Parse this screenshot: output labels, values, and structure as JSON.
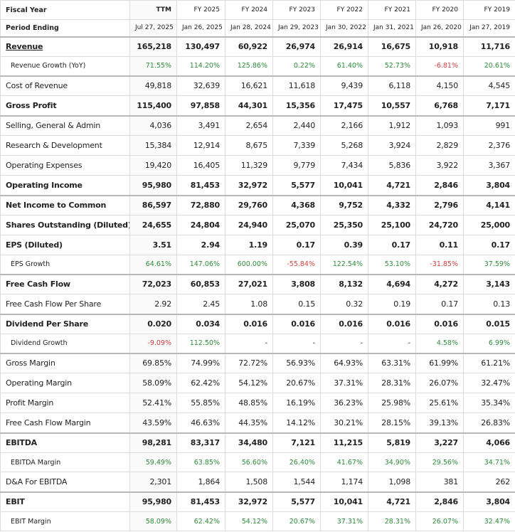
{
  "header": {
    "label": "Fiscal Year",
    "cols": [
      "TTM",
      "FY 2025",
      "FY 2024",
      "FY 2023",
      "FY 2022",
      "FY 2021",
      "FY 2020",
      "FY 2019"
    ]
  },
  "period": {
    "label": "Period Ending",
    "cols": [
      "Jul 27, 2025",
      "Jan 26, 2025",
      "Jan 28, 2024",
      "Jan 29, 2023",
      "Jan 30, 2022",
      "Jan 31, 2021",
      "Jan 26, 2020",
      "Jan 27, 2019"
    ]
  },
  "rows": [
    {
      "id": "revenue",
      "label": "Revenue",
      "style": "bold",
      "link": true,
      "thick": true,
      "values": [
        "165,218",
        "130,497",
        "60,922",
        "26,974",
        "26,914",
        "16,675",
        "10,918",
        "11,716"
      ]
    },
    {
      "id": "revenue-growth",
      "label": "Revenue Growth (YoY)",
      "style": "sub",
      "values": [
        "71.55%",
        "114.20%",
        "125.86%",
        "0.22%",
        "61.40%",
        "52.73%",
        "-6.81%",
        "20.61%"
      ]
    },
    {
      "id": "cost-of-revenue",
      "label": "Cost of Revenue",
      "style": "normal",
      "thick": true,
      "values": [
        "49,818",
        "32,639",
        "16,621",
        "11,618",
        "9,439",
        "6,118",
        "4,150",
        "4,545"
      ]
    },
    {
      "id": "gross-profit",
      "label": "Gross Profit",
      "style": "bold",
      "values": [
        "115,400",
        "97,858",
        "44,301",
        "15,356",
        "17,475",
        "10,557",
        "6,768",
        "7,171"
      ]
    },
    {
      "id": "sga",
      "label": "Selling, General & Admin",
      "style": "normal",
      "thick": true,
      "values": [
        "4,036",
        "3,491",
        "2,654",
        "2,440",
        "2,166",
        "1,912",
        "1,093",
        "991"
      ]
    },
    {
      "id": "rnd",
      "label": "Research & Development",
      "style": "normal",
      "values": [
        "15,384",
        "12,914",
        "8,675",
        "7,339",
        "5,268",
        "3,924",
        "2,829",
        "2,376"
      ]
    },
    {
      "id": "operating-expenses",
      "label": "Operating Expenses",
      "style": "normal",
      "values": [
        "19,420",
        "16,405",
        "11,329",
        "9,779",
        "7,434",
        "5,836",
        "3,922",
        "3,367"
      ]
    },
    {
      "id": "operating-income",
      "label": "Operating Income",
      "style": "bold",
      "values": [
        "95,980",
        "81,453",
        "32,972",
        "5,577",
        "10,041",
        "4,721",
        "2,846",
        "3,804"
      ]
    },
    {
      "id": "net-income",
      "label": "Net Income to Common",
      "style": "bold",
      "thick": true,
      "values": [
        "86,597",
        "72,880",
        "29,760",
        "4,368",
        "9,752",
        "4,332",
        "2,796",
        "4,141"
      ]
    },
    {
      "id": "shares-outstanding",
      "label": "Shares Outstanding (Diluted)",
      "style": "bold",
      "values": [
        "24,655",
        "24,804",
        "24,940",
        "25,070",
        "25,350",
        "25,100",
        "24,720",
        "25,000"
      ]
    },
    {
      "id": "eps",
      "label": "EPS (Diluted)",
      "style": "bold",
      "values": [
        "3.51",
        "2.94",
        "1.19",
        "0.17",
        "0.39",
        "0.17",
        "0.11",
        "0.17"
      ]
    },
    {
      "id": "eps-growth",
      "label": "EPS Growth",
      "style": "sub",
      "values": [
        "64.61%",
        "147.06%",
        "600.00%",
        "-55.84%",
        "122.54%",
        "53.10%",
        "-31.85%",
        "37.59%"
      ]
    },
    {
      "id": "free-cash-flow",
      "label": "Free Cash Flow",
      "style": "bold",
      "thick": true,
      "values": [
        "72,023",
        "60,853",
        "27,021",
        "3,808",
        "8,132",
        "4,694",
        "4,272",
        "3,143"
      ]
    },
    {
      "id": "fcf-per-share",
      "label": "Free Cash Flow Per Share",
      "style": "normal",
      "values": [
        "2.92",
        "2.45",
        "1.08",
        "0.15",
        "0.32",
        "0.19",
        "0.17",
        "0.13"
      ]
    },
    {
      "id": "dividend-per-share",
      "label": "Dividend Per Share",
      "style": "bold",
      "thick": true,
      "values": [
        "0.020",
        "0.034",
        "0.016",
        "0.016",
        "0.016",
        "0.016",
        "0.016",
        "0.015"
      ]
    },
    {
      "id": "dividend-growth",
      "label": "Dividend Growth",
      "style": "sub",
      "values": [
        "-9.09%",
        "112.50%",
        "-",
        "-",
        "-",
        "-",
        "4.58%",
        "6.99%"
      ]
    },
    {
      "id": "gross-margin",
      "label": "Gross Margin",
      "style": "normal",
      "thick": true,
      "values": [
        "69.85%",
        "74.99%",
        "72.72%",
        "56.93%",
        "64.93%",
        "63.31%",
        "61.99%",
        "61.21%"
      ]
    },
    {
      "id": "operating-margin",
      "label": "Operating Margin",
      "style": "normal",
      "values": [
        "58.09%",
        "62.42%",
        "54.12%",
        "20.67%",
        "37.31%",
        "28.31%",
        "26.07%",
        "32.47%"
      ]
    },
    {
      "id": "profit-margin",
      "label": "Profit Margin",
      "style": "normal",
      "values": [
        "52.41%",
        "55.85%",
        "48.85%",
        "16.19%",
        "36.23%",
        "25.98%",
        "25.61%",
        "35.34%"
      ]
    },
    {
      "id": "fcf-margin",
      "label": "Free Cash Flow Margin",
      "style": "normal",
      "values": [
        "43.59%",
        "46.63%",
        "44.35%",
        "14.12%",
        "30.21%",
        "28.15%",
        "39.13%",
        "26.83%"
      ]
    },
    {
      "id": "ebitda",
      "label": "EBITDA",
      "style": "bold",
      "thick": true,
      "values": [
        "98,281",
        "83,317",
        "34,480",
        "7,121",
        "11,215",
        "5,819",
        "3,227",
        "4,066"
      ]
    },
    {
      "id": "ebitda-margin",
      "label": "EBITDA Margin",
      "style": "sub",
      "values": [
        "59.49%",
        "63.85%",
        "56.60%",
        "26.40%",
        "41.67%",
        "34.90%",
        "29.56%",
        "34.71%"
      ]
    },
    {
      "id": "da-for-ebitda",
      "label": "D&A For EBITDA",
      "style": "normal",
      "values": [
        "2,301",
        "1,864",
        "1,508",
        "1,544",
        "1,174",
        "1,098",
        "381",
        "262"
      ]
    },
    {
      "id": "ebit",
      "label": "EBIT",
      "style": "bold",
      "thick": true,
      "values": [
        "95,980",
        "81,453",
        "32,972",
        "5,577",
        "10,041",
        "4,721",
        "2,846",
        "3,804"
      ]
    },
    {
      "id": "ebit-margin",
      "label": "EBIT Margin",
      "style": "sub",
      "values": [
        "58.09%",
        "62.42%",
        "54.12%",
        "20.67%",
        "37.31%",
        "28.31%",
        "26.07%",
        "32.47%"
      ]
    }
  ],
  "colors": {
    "positive": "#2e8b3a",
    "negative": "#d23f3f",
    "border": "#dcdcdc",
    "text": "#222222"
  }
}
